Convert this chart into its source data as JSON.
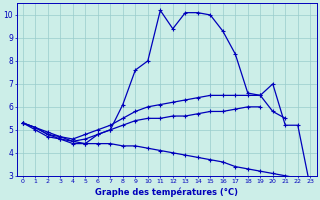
{
  "xlabel": "Graphe des températures (°C)",
  "background_color": "#cceee8",
  "line_color": "#0000bb",
  "grid_color": "#99cccc",
  "x_hours": [
    0,
    1,
    2,
    3,
    4,
    5,
    6,
    7,
    8,
    9,
    10,
    11,
    12,
    13,
    14,
    15,
    16,
    17,
    18,
    19,
    20,
    21,
    22,
    23
  ],
  "curve_main": [
    5.3,
    5.0,
    4.7,
    4.6,
    4.4,
    4.4,
    4.8,
    5.0,
    6.1,
    7.6,
    8.0,
    10.2,
    9.4,
    10.1,
    10.1,
    10.0,
    9.3,
    8.3,
    6.6,
    6.5,
    7.0,
    5.2,
    5.2,
    2.5
  ],
  "curve_upper": [
    5.3,
    5.1,
    4.8,
    4.7,
    4.6,
    4.8,
    5.0,
    5.2,
    5.5,
    5.8,
    6.0,
    6.1,
    6.2,
    6.3,
    6.4,
    6.5,
    6.5,
    6.5,
    6.5,
    6.5,
    5.8,
    5.5,
    null,
    null
  ],
  "curve_mid": [
    5.3,
    5.1,
    4.8,
    4.6,
    4.5,
    4.6,
    4.8,
    5.0,
    5.2,
    5.4,
    5.5,
    5.5,
    5.6,
    5.6,
    5.7,
    5.8,
    5.8,
    5.9,
    6.0,
    6.0,
    null,
    null,
    null,
    null
  ],
  "curve_low": [
    5.3,
    5.1,
    4.9,
    4.7,
    4.5,
    4.4,
    4.4,
    4.4,
    4.3,
    4.3,
    4.2,
    4.1,
    4.0,
    3.9,
    3.8,
    3.7,
    3.6,
    3.4,
    3.3,
    3.2,
    3.1,
    3.0,
    2.9,
    2.5
  ],
  "ylim_min": 3,
  "ylim_max": 10.5,
  "xlim_min": -0.5,
  "xlim_max": 23.5,
  "yticks": [
    3,
    4,
    5,
    6,
    7,
    8,
    9,
    10
  ],
  "xticks": [
    0,
    1,
    2,
    3,
    4,
    5,
    6,
    7,
    8,
    9,
    10,
    11,
    12,
    13,
    14,
    15,
    16,
    17,
    18,
    19,
    20,
    21,
    22,
    23
  ]
}
